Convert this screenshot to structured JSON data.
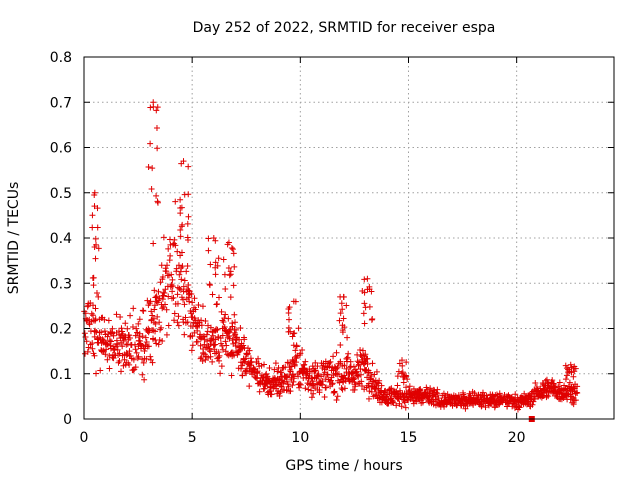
{
  "chart_data": {
    "type": "scatter",
    "title": "Day 252 of 2022, SRMTID for receiver espa",
    "xlabel": "GPS time / hours",
    "ylabel": "SRMTID / TECUs",
    "xlim": [
      0,
      24.5
    ],
    "ylim": [
      0,
      0.8
    ],
    "x_ticks": [
      0,
      5,
      10,
      15,
      20
    ],
    "y_ticks": [
      0,
      0.1,
      0.2,
      0.3,
      0.4,
      0.5,
      0.6,
      0.7,
      0.8
    ],
    "x_tick_labels": [
      "0",
      "5",
      "10",
      "15",
      "20"
    ],
    "y_tick_labels": [
      "0",
      "0.1",
      "0.2",
      "0.3",
      "0.4",
      "0.5",
      "0.6",
      "0.7",
      "0.8"
    ],
    "grid": true,
    "marker": "+",
    "marker_color": "#e00000",
    "series_envelope": {
      "x": [
        0,
        0.5,
        1,
        1.5,
        2,
        2.5,
        3,
        3.5,
        4,
        4.5,
        5,
        5.5,
        6,
        6.5,
        7,
        7.5,
        8,
        8.5,
        9,
        9.5,
        10,
        10.5,
        11,
        11.5,
        12,
        12.5,
        13,
        13.5,
        14,
        14.5,
        15,
        15.5,
        16,
        16.5,
        17,
        17.5,
        18,
        18.5,
        19,
        19.5,
        20,
        20.5,
        21,
        21.5,
        22,
        22.5
      ],
      "center": [
        0.2,
        0.21,
        0.17,
        0.17,
        0.15,
        0.17,
        0.18,
        0.25,
        0.3,
        0.32,
        0.22,
        0.18,
        0.17,
        0.18,
        0.16,
        0.13,
        0.1,
        0.08,
        0.08,
        0.1,
        0.11,
        0.09,
        0.09,
        0.1,
        0.1,
        0.1,
        0.12,
        0.07,
        0.05,
        0.05,
        0.05,
        0.05,
        0.05,
        0.04,
        0.04,
        0.04,
        0.045,
        0.04,
        0.04,
        0.04,
        0.04,
        0.04,
        0.06,
        0.07,
        0.06,
        0.06
      ],
      "spread": [
        0.07,
        0.09,
        0.06,
        0.06,
        0.05,
        0.06,
        0.08,
        0.12,
        0.12,
        0.12,
        0.08,
        0.06,
        0.06,
        0.07,
        0.06,
        0.04,
        0.035,
        0.03,
        0.035,
        0.04,
        0.05,
        0.035,
        0.035,
        0.04,
        0.045,
        0.04,
        0.045,
        0.025,
        0.02,
        0.02,
        0.02,
        0.02,
        0.02,
        0.015,
        0.015,
        0.015,
        0.015,
        0.015,
        0.015,
        0.015,
        0.015,
        0.015,
        0.02,
        0.02,
        0.02,
        0.02
      ]
    },
    "peaks": [
      {
        "x": 0.5,
        "y": 0.5
      },
      {
        "x": 3.2,
        "y": 0.7
      },
      {
        "x": 4.6,
        "y": 0.57
      },
      {
        "x": 6.0,
        "y": 0.4
      },
      {
        "x": 6.7,
        "y": 0.39
      },
      {
        "x": 9.7,
        "y": 0.26
      },
      {
        "x": 12.0,
        "y": 0.27
      },
      {
        "x": 13.1,
        "y": 0.31
      },
      {
        "x": 14.7,
        "y": 0.13
      },
      {
        "x": 22.5,
        "y": 0.12
      }
    ],
    "outlier_points": [
      {
        "x": 20.7,
        "y": 0.0
      }
    ]
  }
}
